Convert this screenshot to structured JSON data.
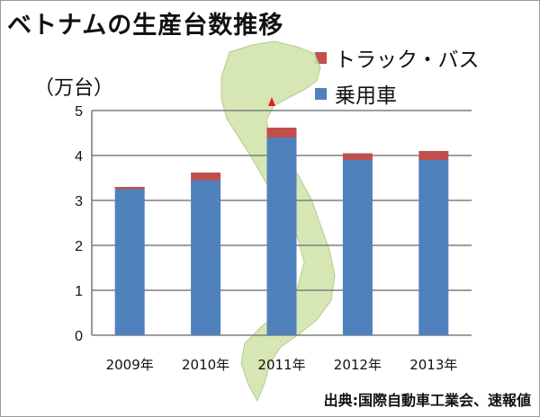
{
  "title": "ベトナムの生産台数推移",
  "unit_label": "（万台）",
  "source": "出典:国際自動車工業会、速報値",
  "map_icon": "vietnam-map",
  "chart_data": {
    "type": "bar",
    "stacked": true,
    "categories": [
      "2009年",
      "2010年",
      "2011年",
      "2012年",
      "2013年"
    ],
    "series": [
      {
        "name": "乗用車",
        "color": "#4f81bd",
        "values": [
          3.25,
          3.45,
          4.4,
          3.9,
          3.9
        ]
      },
      {
        "name": "トラック・バス",
        "color": "#c0504d",
        "values": [
          0.05,
          0.17,
          0.22,
          0.15,
          0.2
        ]
      }
    ],
    "ylim": [
      0,
      5
    ],
    "yticks": [
      "0",
      "1",
      "2",
      "3",
      "4",
      "5"
    ],
    "grid": true,
    "legend_position": "top-right",
    "legend": [
      {
        "name": "トラック・バス",
        "color": "#c0504d"
      },
      {
        "name": "乗用車",
        "color": "#4f81bd"
      }
    ]
  }
}
